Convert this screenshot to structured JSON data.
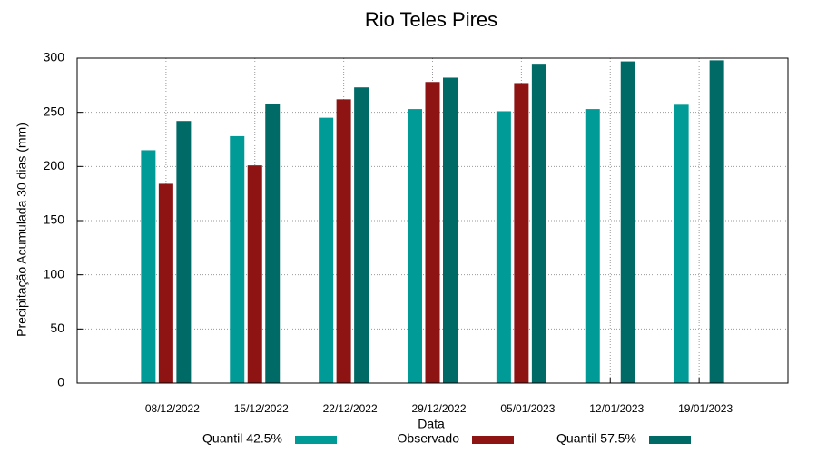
{
  "chart_data": {
    "type": "bar",
    "title": "Rio Teles Pires",
    "x_label": "Data",
    "y_label": "Precipitação Acumulada 30 dias (mm)",
    "categories": [
      "08/12/2022",
      "15/12/2022",
      "22/12/2022",
      "29/12/2022",
      "05/01/2023",
      "12/01/2023",
      "19/01/2023"
    ],
    "series": [
      {
        "name": "Quantil 42.5%",
        "color": "#009b96",
        "values": [
          215,
          228,
          245,
          253,
          251,
          253,
          257
        ]
      },
      {
        "name": "Observado",
        "color": "#8e1414",
        "values": [
          184,
          201,
          262,
          278,
          277,
          null,
          null
        ]
      },
      {
        "name": "Quantil 57.5%",
        "color": "#006a66",
        "values": [
          242,
          258,
          273,
          282,
          294,
          297,
          298
        ]
      }
    ],
    "ylim": [
      0,
      300
    ],
    "yticks": [
      0,
      50,
      100,
      150,
      200,
      250,
      300
    ],
    "grid": true,
    "legend": "bottom"
  }
}
